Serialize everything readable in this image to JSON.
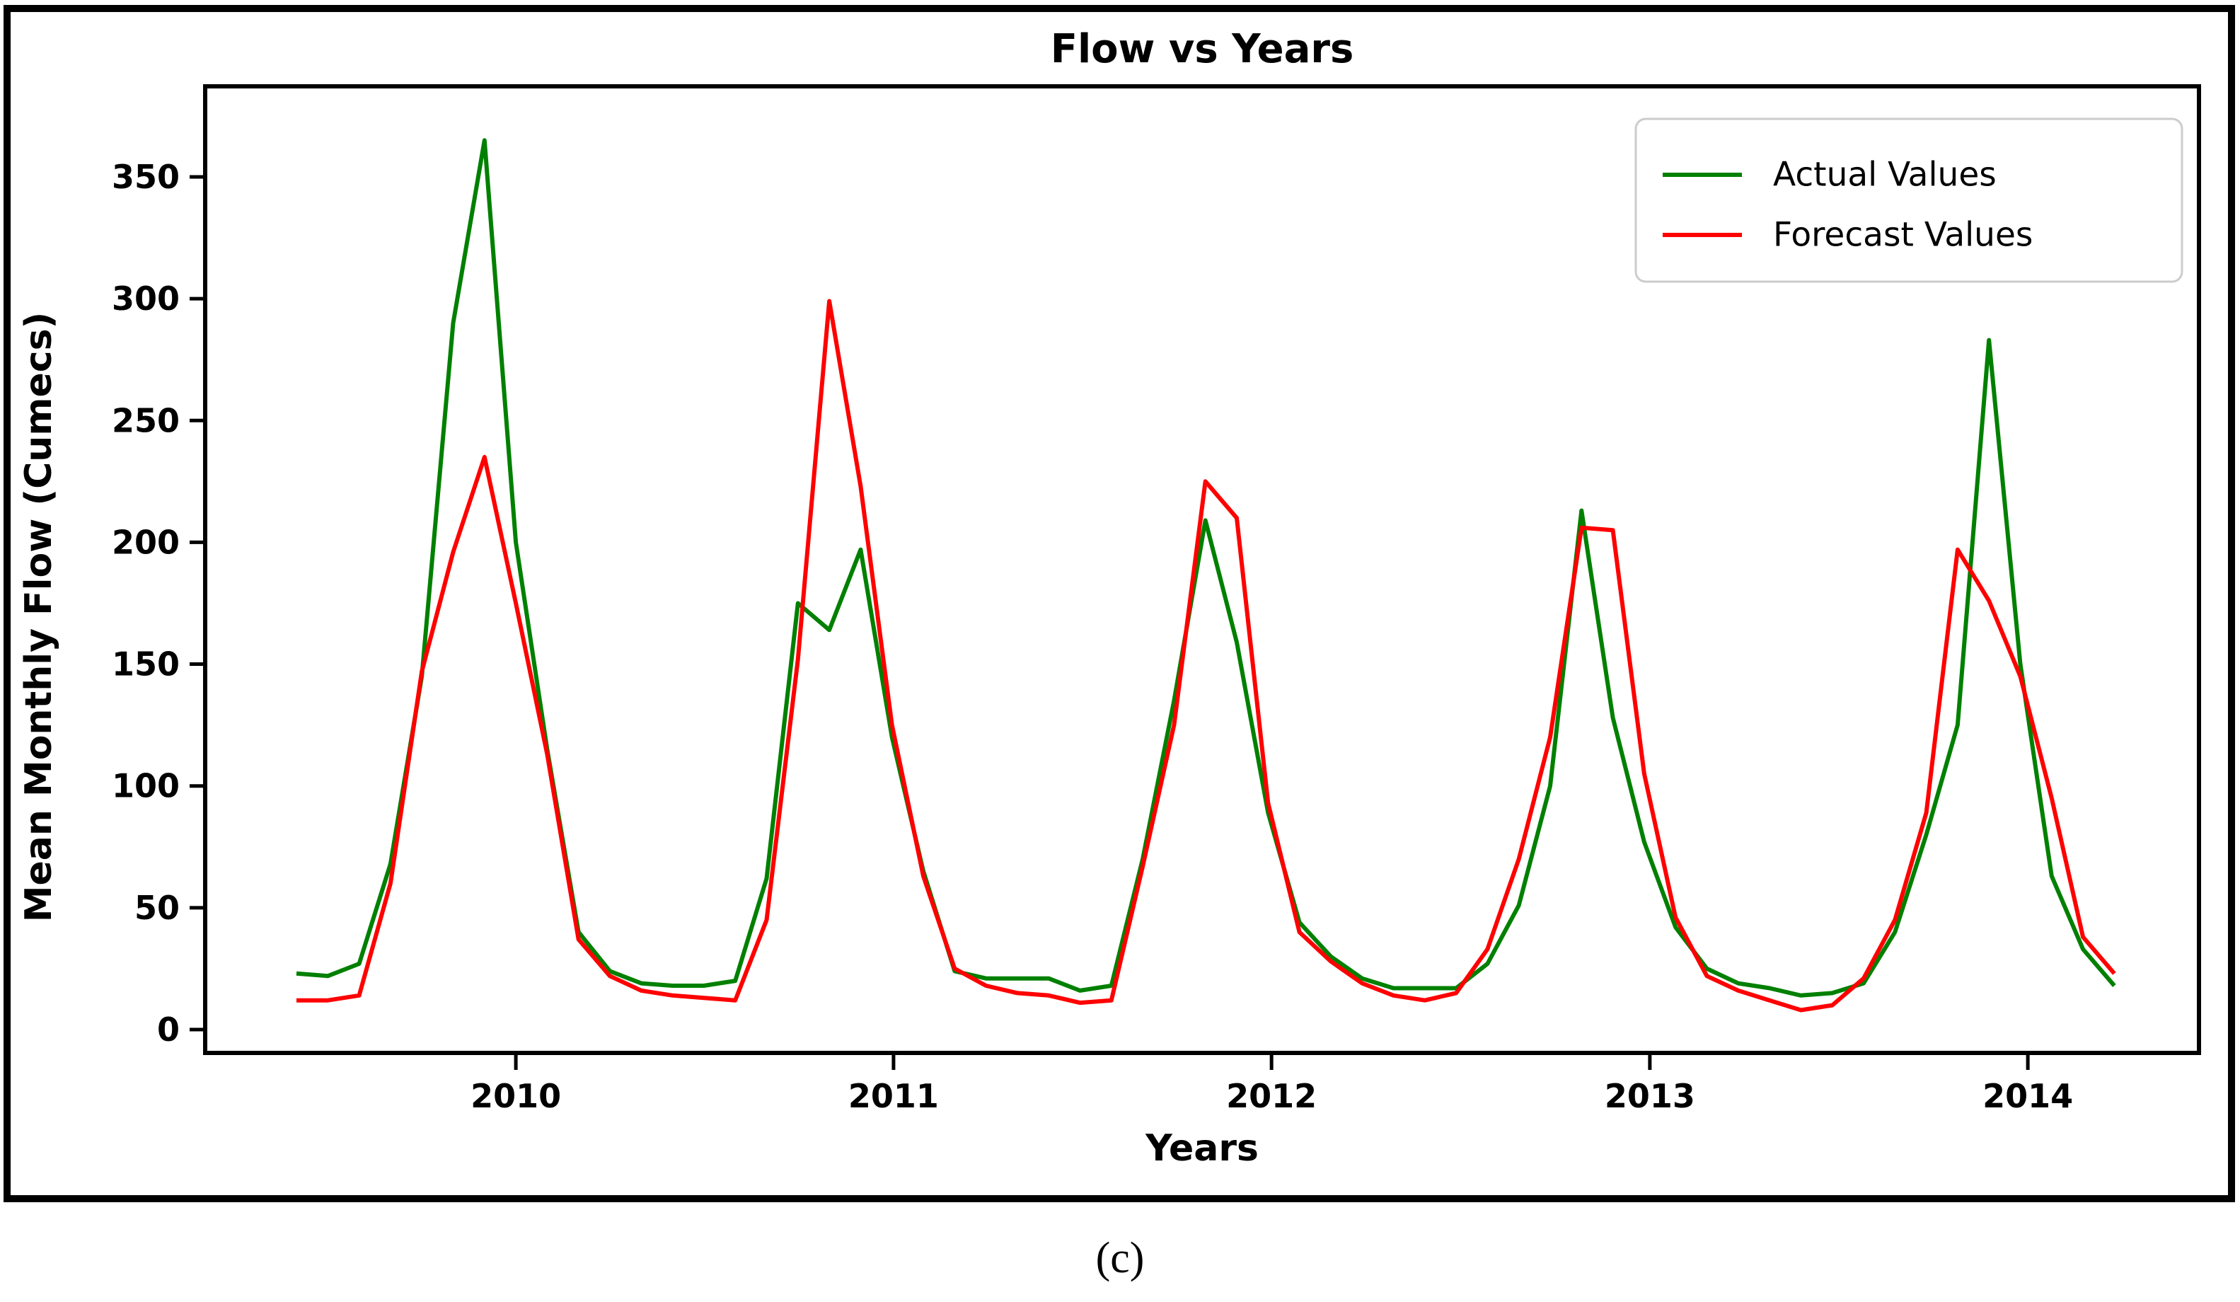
{
  "chart_data": {
    "type": "line",
    "title": "Flow vs Years",
    "xlabel": "Years",
    "ylabel": "Mean Monthly Flow (Cumecs)",
    "caption": "(c)",
    "grid": false,
    "x_start": "2009-06",
    "frequency": "monthly",
    "n_points": 59,
    "xlim_index": [
      -2.91,
      60.63
    ],
    "ylim": [
      -10,
      387
    ],
    "yticks": [
      0,
      50,
      100,
      150,
      200,
      250,
      300,
      350
    ],
    "x_tick_labels": [
      "2010",
      "2011",
      "2012",
      "2013",
      "2014"
    ],
    "x_tick_index": [
      7.0,
      19.05,
      31.11,
      43.18,
      55.24
    ],
    "legend": {
      "position": "upper right",
      "entries": [
        {
          "label": "Actual Values",
          "color": "#008000"
        },
        {
          "label": "Forecast Values",
          "color": "#ff0000"
        }
      ]
    },
    "series": [
      {
        "name": "Actual Values",
        "color": "#008000",
        "values": [
          23,
          22,
          27,
          68,
          145,
          290,
          365,
          200,
          115,
          40,
          24,
          19,
          18,
          18,
          20,
          62,
          175,
          164,
          197,
          120,
          65,
          24,
          21,
          21,
          21,
          16,
          18,
          70,
          135,
          209,
          159,
          89,
          44,
          30,
          21,
          17,
          17,
          17,
          27,
          51,
          100,
          213,
          128,
          77,
          42,
          25,
          19,
          17,
          14,
          15,
          19,
          40,
          80,
          125,
          283,
          150,
          63,
          33,
          18
        ]
      },
      {
        "name": "Forecast Values",
        "color": "#ff0000",
        "values": [
          12,
          12,
          14,
          60,
          147,
          196,
          235,
          175,
          113,
          37,
          22,
          16,
          14,
          13,
          12,
          45,
          152,
          299,
          223,
          125,
          63,
          25,
          18,
          15,
          14,
          11,
          12,
          67,
          125,
          225,
          210,
          93,
          40,
          28,
          19,
          14,
          12,
          15,
          33,
          70,
          120,
          206,
          205,
          105,
          46,
          22,
          16,
          12,
          8,
          10,
          21,
          45,
          89,
          197,
          176,
          145,
          95,
          38,
          23
        ]
      }
    ],
    "colors": {
      "frame": "#000000",
      "legend_border": "#cccccc",
      "background": "#ffffff"
    }
  }
}
